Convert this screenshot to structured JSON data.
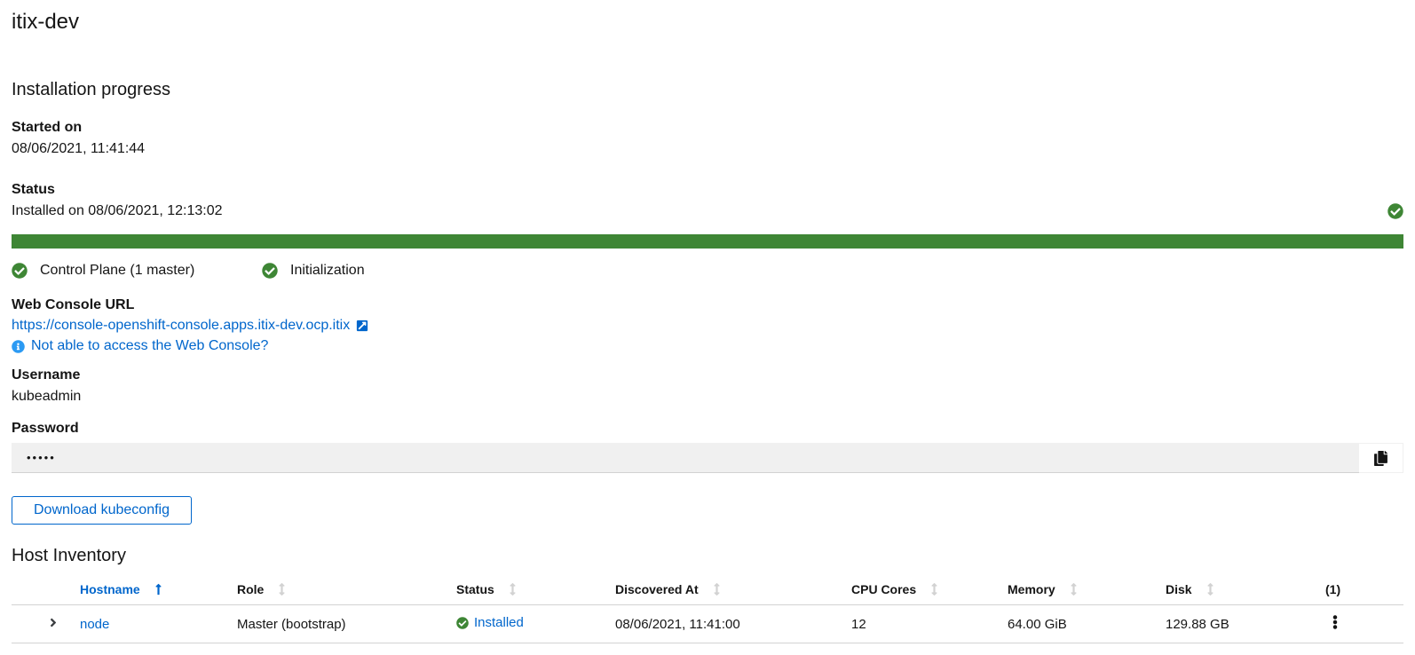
{
  "page": {
    "title": "itix-dev"
  },
  "installation": {
    "heading": "Installation progress",
    "started_label": "Started on",
    "started_value": "08/06/2021, 11:41:44",
    "status_label": "Status",
    "status_value": "Installed on 08/06/2021, 12:13:02",
    "progress_percent": 100,
    "steps": [
      {
        "label": "Control Plane (1 master)",
        "state": "success"
      },
      {
        "label": "Initialization",
        "state": "success"
      }
    ]
  },
  "credentials": {
    "web_console_label": "Web Console URL",
    "web_console_url": "https://console-openshift-console.apps.itix-dev.ocp.itix",
    "troubleshoot_link": "Not able to access the Web Console?",
    "username_label": "Username",
    "username_value": "kubeadmin",
    "password_label": "Password",
    "password_masked": "•••••"
  },
  "actions": {
    "download_kubeconfig": "Download kubeconfig"
  },
  "host_inventory": {
    "heading": "Host Inventory",
    "columns": [
      {
        "label": "Hostname",
        "sorted": "asc"
      },
      {
        "label": "Role",
        "sorted": "none"
      },
      {
        "label": "Status",
        "sorted": "none"
      },
      {
        "label": "Discovered At",
        "sorted": "none"
      },
      {
        "label": "CPU Cores",
        "sorted": "none"
      },
      {
        "label": "Memory",
        "sorted": "none"
      },
      {
        "label": "Disk",
        "sorted": "none"
      }
    ],
    "count_label": "(1)",
    "rows": [
      {
        "hostname": "node",
        "role": "Master (bootstrap)",
        "status": "Installed",
        "discovered_at": "08/06/2021, 11:41:00",
        "cpu_cores": "12",
        "memory": "64.00 GiB",
        "disk": "129.88 GB"
      }
    ]
  },
  "colors": {
    "success_green": "#3E8635",
    "link_blue": "#0066CC",
    "info_blue": "#2B9AF3"
  }
}
